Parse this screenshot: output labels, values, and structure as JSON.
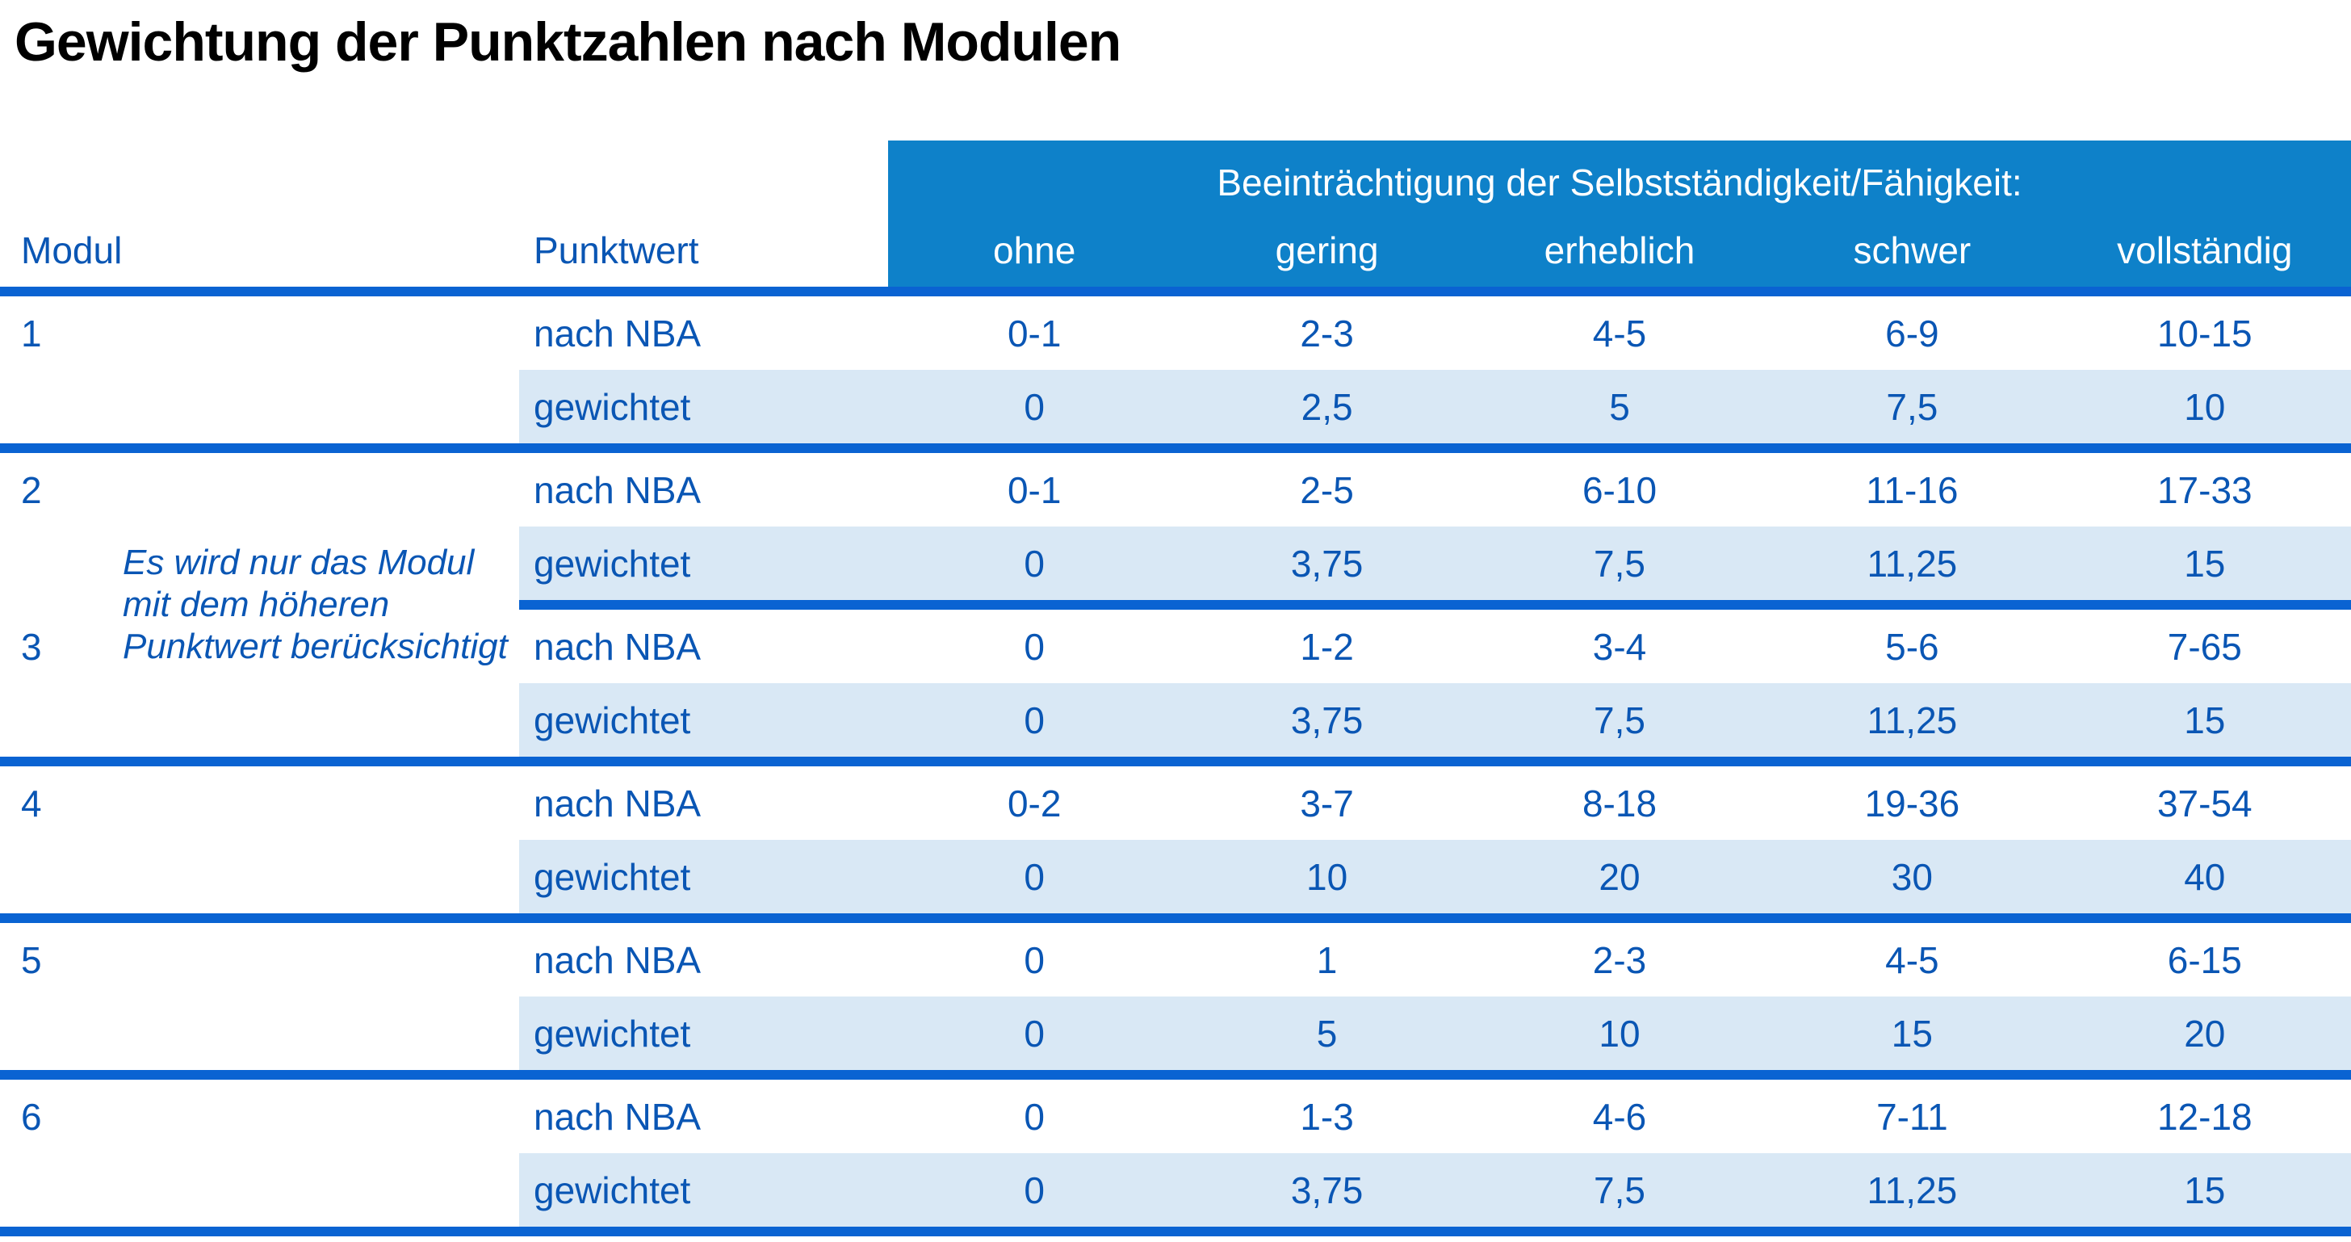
{
  "title": "Gewichtung der Punktzahlen nach Modulen",
  "colors": {
    "band_blue": "#0e81c9",
    "line_blue": "#0a63d2",
    "row_light_blue": "#d9e8f5",
    "text_blue": "#0a56b4",
    "band_text": "#ffffff",
    "title_color": "#000000"
  },
  "table": {
    "band_title": "Beeinträchtigung der Selbstständigkeit/Fähigkeit:",
    "col_modul": "Modul",
    "col_punktwert": "Punktwert",
    "severity": [
      "ohne",
      "gering",
      "erheblich",
      "schwer",
      "vollständig"
    ],
    "note_lines": [
      "Es wird nur das Modul",
      "mit dem höheren",
      "Punktwert berücksichtigt"
    ]
  },
  "modules": [
    {
      "id": "1",
      "rows": [
        {
          "label": "nach NBA",
          "values": [
            "0-1",
            "2-3",
            "4-5",
            "6-9",
            "10-15"
          ]
        },
        {
          "label": "gewichtet",
          "values": [
            "0",
            "2,5",
            "5",
            "7,5",
            "10"
          ]
        }
      ]
    },
    {
      "id": "2",
      "rows": [
        {
          "label": "nach NBA",
          "values": [
            "0-1",
            "2-5",
            "6-10",
            "11-16",
            "17-33"
          ]
        },
        {
          "label": "gewichtet",
          "values": [
            "0",
            "3,75",
            "7,5",
            "11,25",
            "15"
          ]
        }
      ]
    },
    {
      "id": "3",
      "rows": [
        {
          "label": "nach NBA",
          "values": [
            "0",
            "1-2",
            "3-4",
            "5-6",
            "7-65"
          ]
        },
        {
          "label": "gewichtet",
          "values": [
            "0",
            "3,75",
            "7,5",
            "11,25",
            "15"
          ]
        }
      ]
    },
    {
      "id": "4",
      "rows": [
        {
          "label": "nach NBA",
          "values": [
            "0-2",
            "3-7",
            "8-18",
            "19-36",
            "37-54"
          ]
        },
        {
          "label": "gewichtet",
          "values": [
            "0",
            "10",
            "20",
            "30",
            "40"
          ]
        }
      ]
    },
    {
      "id": "5",
      "rows": [
        {
          "label": "nach NBA",
          "values": [
            "0",
            "1",
            "2-3",
            "4-5",
            "6-15"
          ]
        },
        {
          "label": "gewichtet",
          "values": [
            "0",
            "5",
            "10",
            "15",
            "20"
          ]
        }
      ]
    },
    {
      "id": "6",
      "rows": [
        {
          "label": "nach NBA",
          "values": [
            "0",
            "1-3",
            "4-6",
            "7-11",
            "12-18"
          ]
        },
        {
          "label": "gewichtet",
          "values": [
            "0",
            "3,75",
            "7,5",
            "11,25",
            "15"
          ]
        }
      ]
    }
  ]
}
